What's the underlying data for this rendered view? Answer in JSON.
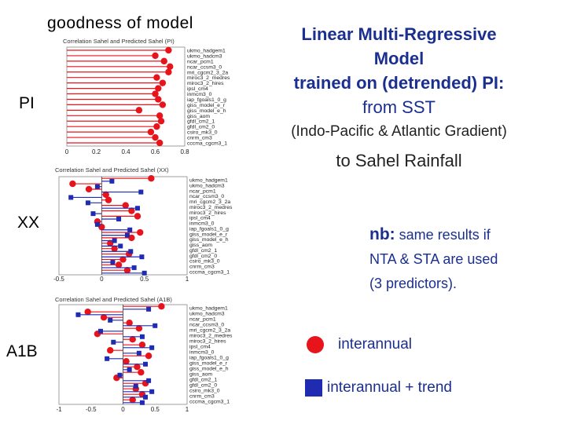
{
  "header": {
    "left_title": "goodness of model",
    "right_lines": [
      "Linear Multi-Regressive",
      "Model",
      "trained on (detrended) PI:",
      "from SST"
    ],
    "right_paren": "(Indo-Pacific & Atlantic Gradient)",
    "right_last": "to Sahel Rainfall"
  },
  "side_labels": [
    "PI",
    "XX",
    "A1B"
  ],
  "note": {
    "prefix": "nb:",
    "line1": "same results if",
    "line2": "NTA & STA are used",
    "line3": "(3 predictors)."
  },
  "legend": {
    "circle_label": "interannual",
    "square_label": "interannual + trend",
    "circle_color": "#e8141c",
    "square_color": "#1f2bb0"
  },
  "chart_data": [
    {
      "type": "scatter",
      "title": "Correlation Sahel and Predicted Sahel (PI)",
      "xlim": [
        0,
        0.8
      ],
      "xticks": [
        "0",
        "0.2",
        "0.4",
        "0.6",
        "0.8"
      ],
      "categories": [
        "ukmo_hadgem1",
        "ukmo_hadcm3",
        "ncar_pcm1",
        "ncar_ccsm3_0",
        "mri_cgcm2_3_2a",
        "miroc3_2_medres",
        "miroc3_2_hires",
        "ipsl_cm4",
        "inmcm3_0",
        "iap_fgoals1_0_g",
        "giss_model_e_r",
        "giss_model_e_h",
        "giss_aom",
        "gfdl_cm2_1",
        "gfdl_cm2_0",
        "csiro_mk3_0",
        "cnrm_cm3",
        "cccma_cgcm3_1"
      ],
      "series": [
        {
          "name": "interannual",
          "values": [
            0.69,
            0.6,
            0.66,
            0.7,
            0.69,
            0.61,
            0.65,
            0.62,
            0.6,
            0.62,
            0.65,
            0.49,
            0.63,
            0.64,
            0.61,
            0.57,
            0.6,
            0.63
          ]
        }
      ]
    },
    {
      "type": "scatter",
      "title": "Correlation Sahel and Predicted Sahel (XX)",
      "xlim": [
        -0.5,
        1
      ],
      "xticks": [
        "-0.5",
        "0",
        "0.5",
        "1"
      ],
      "categories": [
        "ukmo_hadgem1",
        "ukmo_hadcm3",
        "ncar_pcm1",
        "ncar_ccsm3_0",
        "mri_cgcm2_3_2a",
        "miroc3_2_medres",
        "miroc3_2_hires",
        "ipsl_cm4",
        "inmcm3_0",
        "iap_fgoals1_0_g",
        "giss_model_e_r",
        "giss_model_e_h",
        "giss_aom",
        "gfdl_cm2_1",
        "gfdl_cm2_0",
        "csiro_mk3_0",
        "cnrm_cm3",
        "cccma_cgcm3_1"
      ],
      "series": [
        {
          "name": "interannual",
          "values": [
            0.58,
            -0.34,
            -0.15,
            0.05,
            0.08,
            0.28,
            0.35,
            0.42,
            -0.05,
            0.0,
            0.45,
            0.35,
            0.1,
            0.15,
            0.32,
            0.25,
            0.2,
            0.3
          ]
        },
        {
          "name": "interannual + trend",
          "values": [
            0.12,
            -0.05,
            0.46,
            -0.36,
            -0.16,
            0.42,
            -0.1,
            0.2,
            -0.05,
            0.33,
            0.3,
            0.15,
            0.22,
            0.34,
            0.47,
            0.13,
            0.38,
            0.5
          ]
        }
      ]
    },
    {
      "type": "scatter",
      "title": "Correlation Sahel and Predicted Sahel (A1B)",
      "xlim": [
        -1,
        1
      ],
      "xticks": [
        "-1",
        "-0.5",
        "0",
        "0.5",
        "1"
      ],
      "categories": [
        "ukmo_hadgem1",
        "ukmo_hadcm3",
        "ncar_pcm1",
        "ncar_ccsm3_0",
        "mri_cgcm2_3_2a",
        "miroc3_2_medres",
        "miroc3_2_hires",
        "ipsl_cm4",
        "inmcm3_0",
        "iap_fgoals1_0_g",
        "giss_model_e_r",
        "giss_model_e_h",
        "giss_aom",
        "gfdl_cm2_1",
        "gfdl_cm2_0",
        "csiro_mk3_0",
        "cnrm_cm3",
        "cccma_cgcm3_1"
      ],
      "series": [
        {
          "name": "interannual",
          "values": [
            0.6,
            -0.55,
            -0.3,
            0.1,
            0.25,
            -0.4,
            0.15,
            0.3,
            -0.2,
            0.4,
            0.05,
            0.22,
            0.28,
            -0.1,
            0.35,
            0.2,
            0.3,
            0.15
          ]
        },
        {
          "name": "interannual + trend",
          "values": [
            0.4,
            -0.7,
            -0.2,
            0.5,
            -0.35,
            0.3,
            -0.15,
            0.45,
            0.25,
            -0.25,
            0.35,
            0.1,
            -0.05,
            0.4,
            0.2,
            0.45,
            0.35,
            0.3
          ]
        }
      ]
    }
  ]
}
